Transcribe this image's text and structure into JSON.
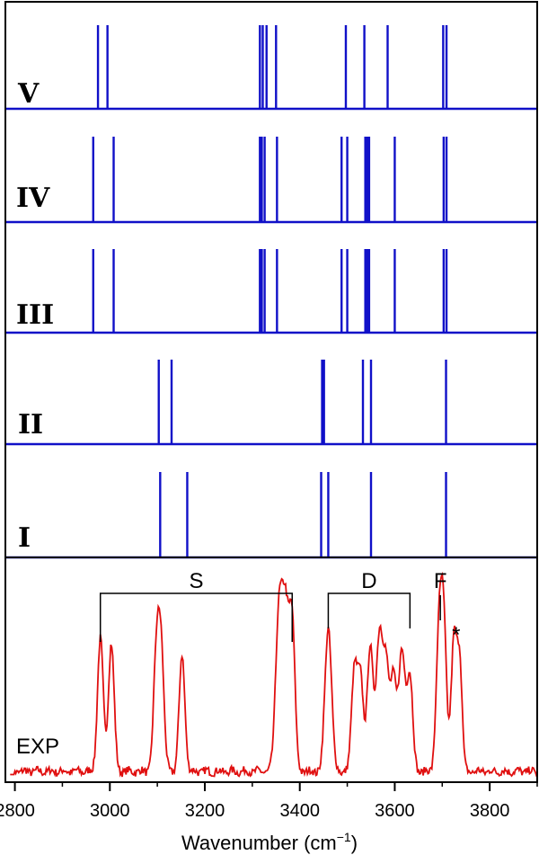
{
  "chart_data": {
    "type": "line",
    "xlabel_main": "Wavenumber (cm",
    "xlabel_sup": "−1",
    "xlabel_end": ")",
    "xlim": [
      2780,
      3900
    ],
    "xticks": [
      2800,
      3000,
      3200,
      3400,
      3600,
      3800
    ],
    "panels": [
      {
        "label": "V",
        "kind": "stick",
        "color": "#1010c8",
        "x": [
          2975,
          2995,
          3316,
          3322,
          3330,
          3350,
          3497,
          3536,
          3585,
          3702,
          3709
        ]
      },
      {
        "label": "IV",
        "kind": "stick",
        "color": "#1010c8",
        "x": [
          2965,
          3008,
          3316,
          3320,
          3326,
          3352,
          3488,
          3500,
          3538,
          3542,
          3546,
          3600,
          3703,
          3709
        ]
      },
      {
        "label": "III",
        "kind": "stick",
        "color": "#1010c8",
        "x": [
          2965,
          3008,
          3316,
          3320,
          3326,
          3352,
          3488,
          3500,
          3538,
          3542,
          3546,
          3600,
          3703,
          3709
        ]
      },
      {
        "label": "II",
        "kind": "stick",
        "color": "#1010c8",
        "x": [
          3103,
          3130,
          3447,
          3451,
          3533,
          3550,
          3708
        ]
      },
      {
        "label": "I",
        "kind": "stick",
        "color": "#1010c8",
        "x": [
          3106,
          3163,
          3445,
          3460,
          3550,
          3708
        ]
      },
      {
        "label": "EXP",
        "kind": "spectrum",
        "color": "#e01010",
        "peaks": [
          [
            2980,
            0.85,
            6
          ],
          [
            3003,
            0.82,
            6
          ],
          [
            3098,
            0.72,
            6
          ],
          [
            3108,
            0.76,
            6
          ],
          [
            3152,
            0.74,
            6
          ],
          [
            3356,
            1.0,
            7
          ],
          [
            3370,
            0.98,
            7
          ],
          [
            3384,
            0.93,
            6
          ],
          [
            3460,
            0.92,
            7
          ],
          [
            3515,
            0.65,
            6
          ],
          [
            3528,
            0.58,
            6
          ],
          [
            3548,
            0.8,
            6
          ],
          [
            3568,
            0.89,
            7
          ],
          [
            3582,
            0.62,
            6
          ],
          [
            3597,
            0.6,
            6
          ],
          [
            3615,
            0.76,
            7
          ],
          [
            3632,
            0.6,
            6
          ],
          [
            3693,
            0.82,
            6
          ],
          [
            3703,
            0.93,
            6
          ],
          [
            3725,
            0.86,
            6
          ],
          [
            3737,
            0.68,
            5
          ]
        ]
      }
    ],
    "annotations": [
      {
        "label": "S",
        "x1": 2980,
        "x2": 3384
      },
      {
        "label": "D",
        "x1": 3460,
        "x2": 3632
      },
      {
        "label": "F",
        "x1": 3696,
        "x2": 3696
      }
    ],
    "star": {
      "text": "*",
      "x": 3737
    }
  }
}
